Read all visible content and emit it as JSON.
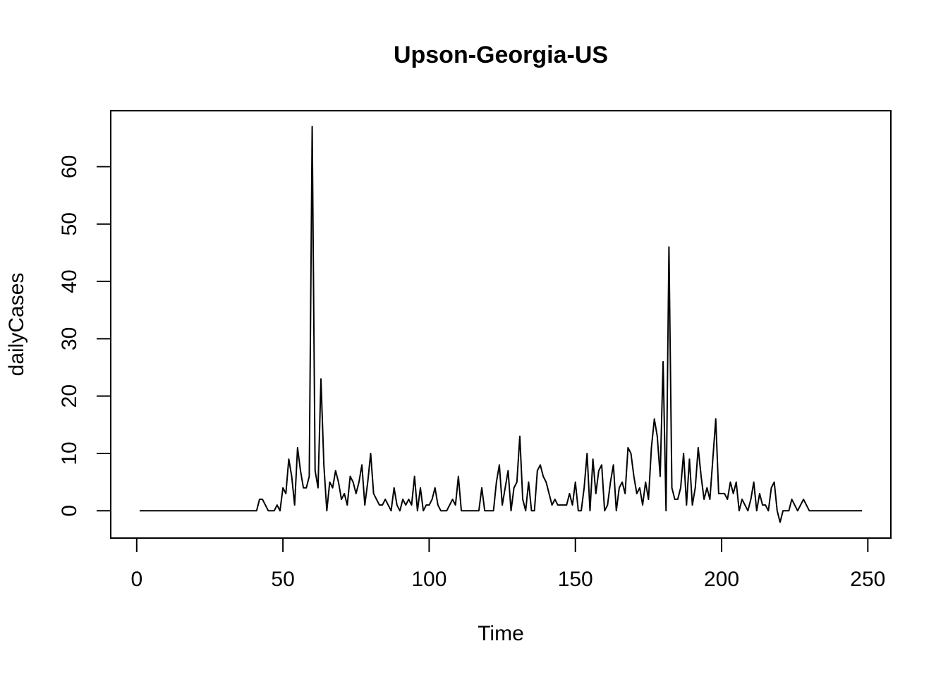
{
  "chart_data": {
    "type": "line",
    "title": "Upson-Georgia-US",
    "x_label": "Time",
    "y_label": "dailyCases",
    "color": "#000000",
    "x": [
      1,
      2,
      3,
      4,
      5,
      6,
      7,
      8,
      9,
      10,
      11,
      12,
      13,
      14,
      15,
      16,
      17,
      18,
      19,
      20,
      21,
      22,
      23,
      24,
      25,
      26,
      27,
      28,
      29,
      30,
      31,
      32,
      33,
      34,
      35,
      36,
      37,
      38,
      39,
      40,
      41,
      42,
      43,
      44,
      45,
      46,
      47,
      48,
      49,
      50,
      51,
      52,
      53,
      54,
      55,
      56,
      57,
      58,
      59,
      60,
      61,
      62,
      63,
      64,
      65,
      66,
      67,
      68,
      69,
      70,
      71,
      72,
      73,
      74,
      75,
      76,
      77,
      78,
      79,
      80,
      81,
      82,
      83,
      84,
      85,
      86,
      87,
      88,
      89,
      90,
      91,
      92,
      93,
      94,
      95,
      96,
      97,
      98,
      99,
      100,
      101,
      102,
      103,
      104,
      105,
      106,
      107,
      108,
      109,
      110,
      111,
      112,
      113,
      114,
      115,
      116,
      117,
      118,
      119,
      120,
      121,
      122,
      123,
      124,
      125,
      126,
      127,
      128,
      129,
      130,
      131,
      132,
      133,
      134,
      135,
      136,
      137,
      138,
      139,
      140,
      141,
      142,
      143,
      144,
      145,
      146,
      147,
      148,
      149,
      150,
      151,
      152,
      153,
      154,
      155,
      156,
      157,
      158,
      159,
      160,
      161,
      162,
      163,
      164,
      165,
      166,
      167,
      168,
      169,
      170,
      171,
      172,
      173,
      174,
      175,
      176,
      177,
      178,
      179,
      180,
      181,
      182,
      183,
      184,
      185,
      186,
      187,
      188,
      189,
      190,
      191,
      192,
      193,
      194,
      195,
      196,
      197,
      198,
      199,
      200,
      201,
      202,
      203,
      204,
      205,
      206,
      207,
      208,
      209,
      210,
      211,
      212,
      213,
      214,
      215,
      216,
      217,
      218,
      219,
      220,
      221,
      222,
      223,
      224,
      225,
      226,
      227,
      228,
      229,
      230,
      231,
      232,
      233,
      234,
      235,
      236,
      237,
      238,
      239,
      240,
      241,
      242,
      243,
      244,
      245,
      246,
      247,
      248
    ],
    "values": [
      0,
      0,
      0,
      0,
      0,
      0,
      0,
      0,
      0,
      0,
      0,
      0,
      0,
      0,
      0,
      0,
      0,
      0,
      0,
      0,
      0,
      0,
      0,
      0,
      0,
      0,
      0,
      0,
      0,
      0,
      0,
      0,
      0,
      0,
      0,
      0,
      0,
      0,
      0,
      0,
      0,
      2,
      2,
      1,
      0,
      0,
      0,
      1,
      0,
      4,
      3,
      9,
      6,
      1,
      11,
      7,
      4,
      4,
      6,
      67,
      7,
      4,
      23,
      8,
      0,
      5,
      4,
      7,
      5,
      2,
      3,
      1,
      6,
      5,
      3,
      5,
      8,
      1,
      5,
      10,
      3,
      2,
      1,
      1,
      2,
      1,
      0,
      4,
      1,
      0,
      2,
      1,
      2,
      1,
      6,
      0,
      4,
      0,
      1,
      1,
      2,
      4,
      1,
      0,
      0,
      0,
      1,
      2,
      1,
      6,
      0,
      0,
      0,
      0,
      0,
      0,
      0,
      4,
      0,
      0,
      0,
      0,
      5,
      8,
      1,
      4,
      7,
      0,
      4,
      5,
      13,
      2,
      0,
      5,
      0,
      0,
      7,
      8,
      6,
      5,
      3,
      1,
      2,
      1,
      1,
      1,
      1,
      3,
      1,
      5,
      0,
      0,
      4,
      10,
      0,
      9,
      3,
      7,
      8,
      0,
      1,
      5,
      8,
      0,
      4,
      5,
      3,
      11,
      10,
      6,
      3,
      4,
      1,
      5,
      2,
      11,
      16,
      13,
      6,
      26,
      0,
      46,
      4,
      2,
      2,
      4,
      10,
      1,
      9,
      1,
      4,
      11,
      6,
      2,
      4,
      2,
      9,
      16,
      3,
      3,
      3,
      2,
      5,
      3,
      5,
      0,
      2,
      1,
      0,
      2,
      5,
      0,
      3,
      1,
      1,
      0,
      4,
      5,
      0,
      -2,
      0,
      0,
      0,
      2,
      1,
      0,
      1,
      2,
      1,
      0,
      0,
      0,
      0,
      0,
      0,
      0,
      0,
      0,
      0,
      0,
      0,
      0,
      0,
      0,
      0,
      0,
      0,
      0
    ],
    "xlim": [
      -8.88,
      257.88
    ],
    "ylim": [
      -4.76,
      69.76
    ],
    "xticks": [
      0,
      50,
      100,
      150,
      200,
      250
    ],
    "yticks": [
      0,
      10,
      20,
      30,
      40,
      50,
      60
    ]
  }
}
